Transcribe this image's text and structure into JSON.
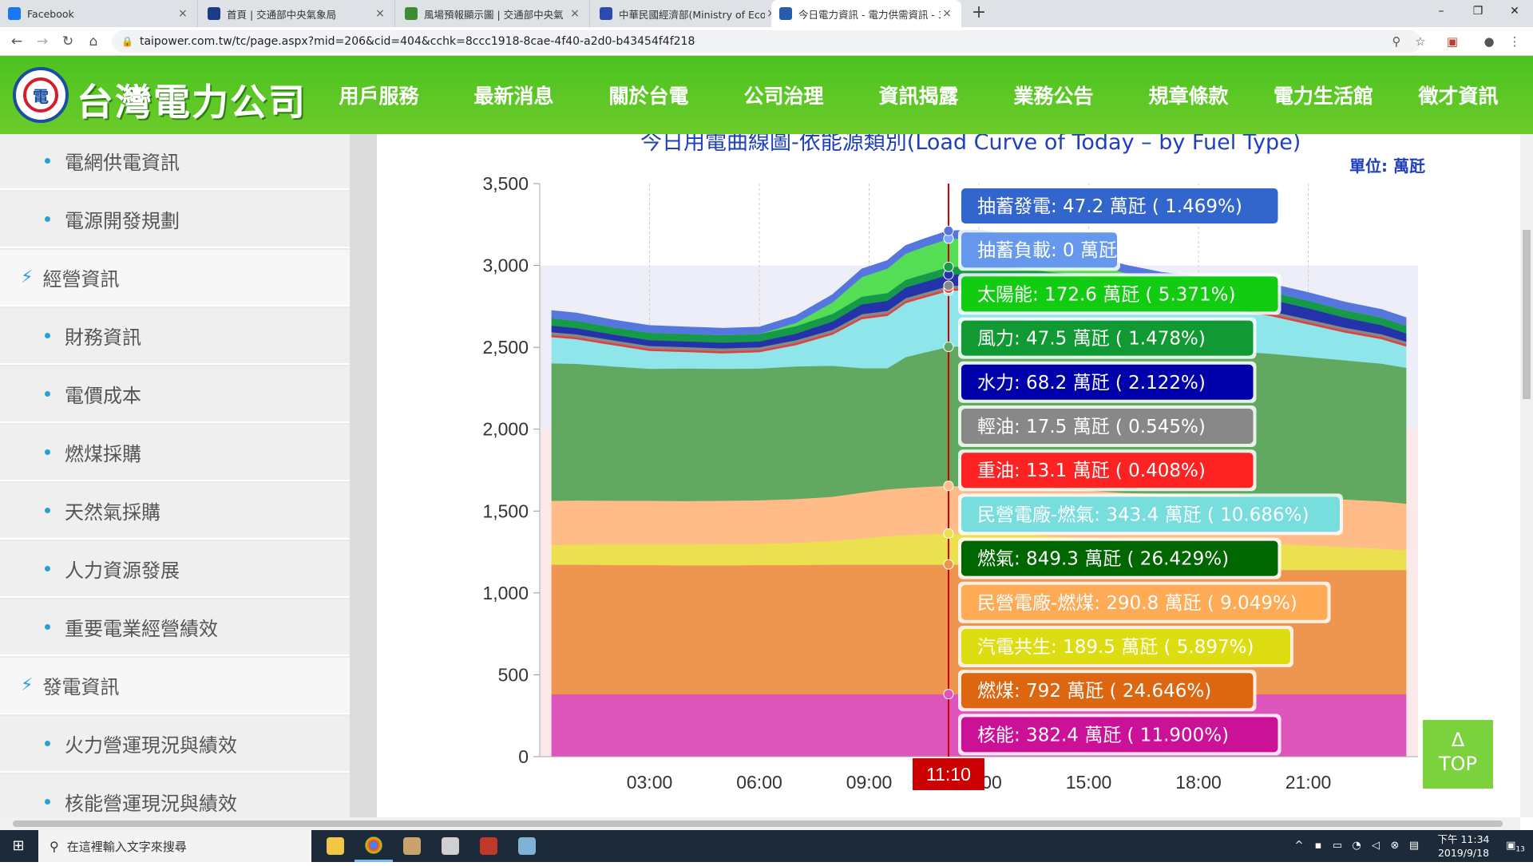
{
  "browser": {
    "tabs": [
      {
        "title": "Facebook",
        "icon": "facebook-icon",
        "color": "#1877f2",
        "active": false
      },
      {
        "title": "首頁 | 交通部中央氣象局",
        "icon": "cwb-icon",
        "color": "#1a3a8a",
        "active": false
      },
      {
        "title": "風場預報顯示圖 | 交通部中央氣",
        "icon": "cwb-map-icon",
        "color": "#3c8d2f",
        "active": false
      },
      {
        "title": "中華民國經濟部(Ministry of Eco",
        "icon": "moea-icon",
        "color": "#2a4bb0",
        "active": false
      },
      {
        "title": "今日電力資訊 - 電力供需資訊 - 3",
        "icon": "taipower-icon",
        "color": "#2a5cad",
        "active": true
      }
    ],
    "new_tab_label": "+",
    "url": "taipower.com.tw/tc/page.aspx?mid=206&cid=404&cchk=8ccc1918-8cae-4f40-a2d0-b43454f4f218",
    "window_controls": {
      "minimize": "–",
      "restore": "❐",
      "close": "✕"
    }
  },
  "site": {
    "logo_text": "台灣電力公司",
    "nav": [
      "用戶服務",
      "最新消息",
      "關於台電",
      "公司治理",
      "資訊揭露",
      "業務公告",
      "規章條款",
      "電力生活館",
      "徵才資訊"
    ],
    "colors": {
      "header": "#5bc421",
      "accent_blue": "#1f3fbf",
      "bullet": "#2a9fd6"
    }
  },
  "sidebar": {
    "items": [
      {
        "label": "電網供電資訊",
        "type": "sub"
      },
      {
        "label": "電源開發規劃",
        "type": "sub"
      },
      {
        "label": "經營資訊",
        "type": "section"
      },
      {
        "label": "財務資訊",
        "type": "sub"
      },
      {
        "label": "電價成本",
        "type": "sub"
      },
      {
        "label": "燃煤採購",
        "type": "sub"
      },
      {
        "label": "天然氣採購",
        "type": "sub"
      },
      {
        "label": "人力資源發展",
        "type": "sub"
      },
      {
        "label": "重要電業經營績效",
        "type": "sub"
      },
      {
        "label": "發電資訊",
        "type": "section"
      },
      {
        "label": "火力營運現況與績效",
        "type": "sub"
      },
      {
        "label": "核能營運現況與績效",
        "type": "sub"
      }
    ]
  },
  "chart_data": {
    "type": "area",
    "title": "今日用電曲線圖-依能源類別(Load Curve of Today – by Fuel Type)",
    "unit_label": "單位: 萬瓩",
    "ylim": [
      0,
      3500
    ],
    "y_ticks": [
      "0",
      "500",
      "1,000",
      "1,500",
      "2,000",
      "2,500",
      "3,000",
      "3,500"
    ],
    "x_range_hours": [
      0.33,
      23.67
    ],
    "x_ticks": [
      {
        "hour": 3,
        "label": "03:00"
      },
      {
        "hour": 6,
        "label": "06:00"
      },
      {
        "hour": 9,
        "label": "09:00"
      },
      {
        "hour": 12,
        "label": "12:00"
      },
      {
        "hour": 15,
        "label": "15:00"
      },
      {
        "hour": 18,
        "label": "18:00"
      },
      {
        "hour": 21,
        "label": "21:00"
      }
    ],
    "cursor": {
      "hour": 11.17,
      "label": "11:10"
    },
    "x_hours": [
      0.33,
      1,
      2,
      3,
      4,
      5,
      6,
      7,
      8,
      8.8,
      9.5,
      10,
      10.5,
      11,
      11.17,
      12,
      13,
      14,
      15,
      16,
      17,
      18,
      19,
      20,
      21,
      22,
      23,
      23.67
    ],
    "series": [
      {
        "name": "核能",
        "color": "#dd55bb",
        "values": [
          382,
          382,
          382,
          382,
          382,
          382,
          382,
          382,
          382,
          382,
          382,
          382,
          382,
          382,
          382,
          382,
          382,
          382,
          382,
          382,
          382,
          382,
          382,
          382,
          382,
          382,
          382,
          382
        ]
      },
      {
        "name": "燃煤",
        "color": "#ee9650",
        "values": [
          792,
          792,
          790,
          790,
          788,
          788,
          790,
          790,
          792,
          792,
          792,
          792,
          792,
          792,
          792,
          792,
          792,
          780,
          770,
          760,
          760,
          760,
          760,
          760,
          760,
          760,
          760,
          760
        ]
      },
      {
        "name": "汽電共生",
        "color": "#ebe050",
        "values": [
          120,
          122,
          125,
          125,
          128,
          130,
          130,
          135,
          145,
          160,
          175,
          180,
          185,
          190,
          189,
          190,
          190,
          185,
          185,
          180,
          175,
          170,
          165,
          160,
          150,
          140,
          130,
          120
        ]
      },
      {
        "name": "民營電廠-燃煤",
        "color": "#ffbb88",
        "values": [
          270,
          270,
          268,
          268,
          265,
          265,
          265,
          268,
          270,
          280,
          285,
          288,
          290,
          291,
          291,
          290,
          290,
          290,
          290,
          290,
          290,
          290,
          290,
          290,
          290,
          290,
          290,
          285
        ]
      },
      {
        "name": "燃氣",
        "color": "#61a860",
        "values": [
          840,
          835,
          820,
          805,
          810,
          805,
          805,
          810,
          800,
          760,
          740,
          800,
          820,
          840,
          849,
          860,
          860,
          870,
          880,
          880,
          880,
          880,
          880,
          870,
          860,
          850,
          840,
          830
        ]
      },
      {
        "name": "民營電廠-燃氣",
        "color": "#8ee6ea",
        "values": [
          160,
          150,
          130,
          110,
          100,
          95,
          100,
          130,
          190,
          300,
          320,
          330,
          335,
          340,
          343,
          340,
          330,
          310,
          290,
          280,
          270,
          260,
          250,
          230,
          200,
          170,
          150,
          130
        ]
      },
      {
        "name": "重油",
        "color": "#e04040",
        "values": [
          13,
          13,
          13,
          13,
          13,
          13,
          13,
          13,
          13,
          13,
          13,
          13,
          13,
          13,
          13,
          13,
          13,
          13,
          13,
          13,
          13,
          13,
          13,
          13,
          13,
          13,
          13,
          13
        ]
      },
      {
        "name": "輕油",
        "color": "#888888",
        "values": [
          17,
          17,
          17,
          17,
          17,
          17,
          17,
          17,
          17,
          17,
          17,
          17,
          17,
          17,
          17,
          17,
          17,
          17,
          17,
          17,
          17,
          17,
          17,
          17,
          17,
          17,
          17,
          17
        ]
      },
      {
        "name": "水力",
        "color": "#2433aa",
        "values": [
          40,
          38,
          35,
          35,
          35,
          35,
          35,
          40,
          50,
          60,
          62,
          65,
          66,
          68,
          68,
          68,
          68,
          66,
          66,
          66,
          66,
          66,
          70,
          70,
          68,
          60,
          55,
          50
        ]
      },
      {
        "name": "風力",
        "color": "#17994a",
        "values": [
          45,
          45,
          45,
          46,
          46,
          46,
          46,
          46,
          47,
          47,
          47,
          47,
          47,
          47,
          47,
          47,
          47,
          47,
          47,
          47,
          47,
          47,
          47,
          47,
          47,
          47,
          47,
          47
        ]
      },
      {
        "name": "太陽能",
        "color": "#55dd55",
        "values": [
          0,
          0,
          0,
          0,
          0,
          0,
          0,
          20,
          70,
          120,
          150,
          160,
          168,
          172,
          173,
          170,
          150,
          120,
          80,
          40,
          10,
          0,
          0,
          0,
          0,
          0,
          0,
          0
        ]
      },
      {
        "name": "抽蓄負載",
        "color": "#7ea6ff",
        "values": [
          0,
          0,
          0,
          0,
          0,
          0,
          0,
          0,
          0,
          0,
          0,
          0,
          0,
          0,
          0,
          0,
          0,
          0,
          0,
          0,
          0,
          0,
          0,
          0,
          0,
          0,
          0,
          0
        ]
      },
      {
        "name": "抽蓄發電",
        "color": "#5577dd",
        "values": [
          45,
          45,
          42,
          42,
          40,
          40,
          40,
          42,
          45,
          47,
          47,
          47,
          47,
          47,
          47,
          47,
          47,
          47,
          47,
          47,
          47,
          47,
          47,
          47,
          47,
          47,
          47,
          47
        ]
      }
    ],
    "tooltip": [
      {
        "name": "抽蓄發電",
        "value": "47.2",
        "unit": "萬瓩",
        "pct": "1.469%",
        "bg": "#3366cc",
        "fg": "#ffffff"
      },
      {
        "name": "抽蓄負載",
        "value": "0",
        "unit": "萬瓩",
        "pct": "",
        "bg": "#6699ee",
        "fg": "#ffffff"
      },
      {
        "name": "太陽能",
        "value": "172.6",
        "unit": "萬瓩",
        "pct": "5.371%",
        "bg": "#11cc11",
        "fg": "#ffffff"
      },
      {
        "name": "風力",
        "value": "47.5",
        "unit": "萬瓩",
        "pct": "1.478%",
        "bg": "#119933",
        "fg": "#ffffff"
      },
      {
        "name": "水力",
        "value": "68.2",
        "unit": "萬瓩",
        "pct": "2.122%",
        "bg": "#0000aa",
        "fg": "#ffffff"
      },
      {
        "name": "輕油",
        "value": "17.5",
        "unit": "萬瓩",
        "pct": "0.545%",
        "bg": "#888888",
        "fg": "#ffffff"
      },
      {
        "name": "重油",
        "value": "13.1",
        "unit": "萬瓩",
        "pct": "0.408%",
        "bg": "#ff2222",
        "fg": "#ffffff"
      },
      {
        "name": "民營電廠-燃氣",
        "value": "343.4",
        "unit": "萬瓩",
        "pct": "10.686%",
        "bg": "#77dddd",
        "fg": "#ffffff"
      },
      {
        "name": "燃氣",
        "value": "849.3",
        "unit": "萬瓩",
        "pct": "26.429%",
        "bg": "#006600",
        "fg": "#ffffff"
      },
      {
        "name": "民營電廠-燃煤",
        "value": "290.8",
        "unit": "萬瓩",
        "pct": "9.049%",
        "bg": "#ffaa55",
        "fg": "#ffffff"
      },
      {
        "name": "汽電共生",
        "value": "189.5",
        "unit": "萬瓩",
        "pct": "5.897%",
        "bg": "#dddd11",
        "fg": "#ffffff"
      },
      {
        "name": "燃煤",
        "value": "792",
        "unit": "萬瓩",
        "pct": "24.646%",
        "bg": "#dd6611",
        "fg": "#ffffff"
      },
      {
        "name": "核能",
        "value": "382.4",
        "unit": "萬瓩",
        "pct": "11.900%",
        "bg": "#cc1199",
        "fg": "#ffffff"
      }
    ],
    "grid": true
  },
  "top_button": {
    "arrow": "Δ",
    "label": "TOP"
  },
  "taskbar": {
    "search_placeholder": "在這裡輸入文字來搜尋",
    "apps": [
      "file-explorer-icon",
      "chrome-icon",
      "app-icon",
      "app-icon",
      "app-icon",
      "app-icon"
    ],
    "time": "下午 11:34",
    "date": "2019/9/18",
    "notifications": "13"
  }
}
